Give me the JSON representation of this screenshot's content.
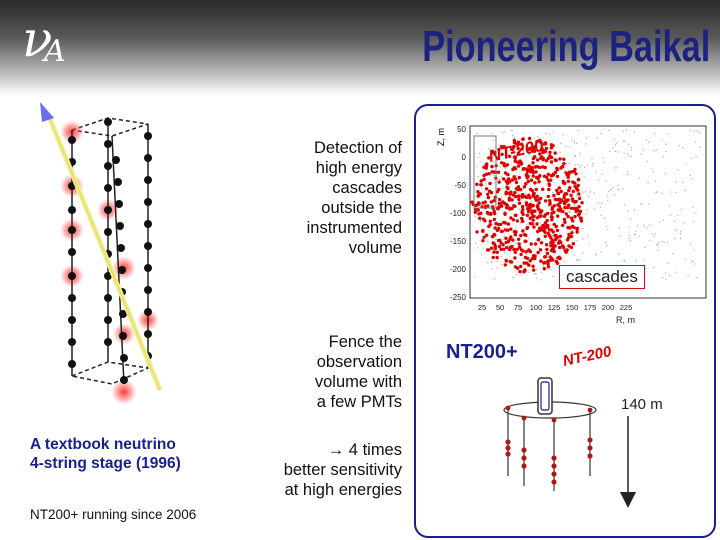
{
  "slide": {
    "title": "Pioneering Baikal",
    "logo_nu": "ν",
    "logo_a": "A"
  },
  "left": {
    "caption_line1": "A textbook neutrino",
    "caption_line2": "4-string stage (1996)",
    "running": "NT200+ running since 2006"
  },
  "middle": {
    "detection_lines": [
      "Detection of",
      "high energy",
      "cascades",
      "outside the",
      "instrumented",
      "volume"
    ],
    "fence_lines": [
      "Fence the",
      "observation",
      "volume with",
      "a few PMTs"
    ],
    "sensitivity_lines": [
      "→ 4 times",
      "better sensitivity",
      "at high energies"
    ]
  },
  "plot": {
    "y_label": "Z, m",
    "x_label": "R, m",
    "y_ticks": [
      "50",
      "0",
      "-50",
      "-100",
      "-150",
      "-200",
      "-250"
    ],
    "x_ticks": [
      "25",
      "50",
      "75",
      "100",
      "125",
      "150",
      "175",
      "200",
      "225"
    ],
    "tag": "NT-200",
    "cascades_label": "cascades"
  },
  "nt200plus": {
    "label": "NT200+",
    "tag": "NT-200",
    "depth_label": "140 m"
  },
  "colors": {
    "title": "#1c2280",
    "panel_border": "#1a1f8f",
    "caption": "#1a1f8f",
    "cascade_dots": "#e00000"
  }
}
